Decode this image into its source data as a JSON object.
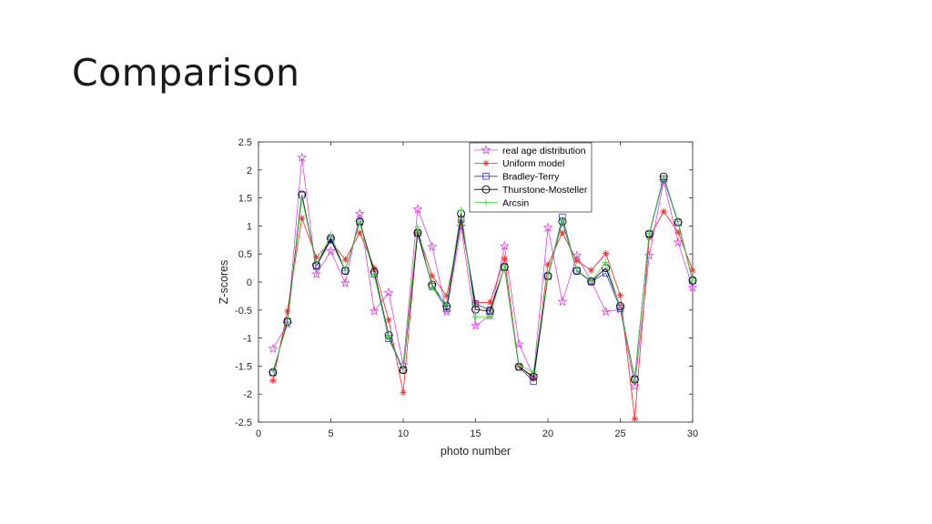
{
  "slide": {
    "title": "Comparison"
  },
  "chart_data": {
    "type": "line",
    "title": "",
    "xlabel": "photo number",
    "ylabel": "Z-scores",
    "xlim": [
      0,
      30
    ],
    "ylim": [
      -2.5,
      2.5
    ],
    "xticks": [
      0,
      5,
      10,
      15,
      20,
      25,
      30
    ],
    "yticks": [
      2.5,
      2,
      1.5,
      1,
      0.5,
      0,
      -0.5,
      -1,
      -1.5,
      -2,
      -2.5
    ],
    "xtick_labels": [
      "0",
      "5",
      "10",
      "15",
      "20",
      "25",
      "30"
    ],
    "ytick_labels": [
      "2.5",
      "2",
      "1.5",
      "1",
      "0.5",
      "0",
      "-0.5",
      "-1",
      "-1.5",
      "-2",
      "-2.5"
    ],
    "grid": false,
    "legend_position": "top-right",
    "x": [
      1,
      2,
      3,
      4,
      5,
      6,
      7,
      8,
      9,
      10,
      11,
      12,
      13,
      14,
      15,
      16,
      17,
      18,
      19,
      20,
      21,
      22,
      23,
      24,
      25,
      26,
      27,
      28,
      29,
      30
    ],
    "series": [
      {
        "name": "real age distribution",
        "color": "#e040e0",
        "marker": "star",
        "values": [
          -1.19,
          -0.75,
          2.22,
          0.14,
          0.55,
          -0.02,
          1.22,
          -0.52,
          -0.19,
          -1.48,
          1.3,
          0.63,
          -0.53,
          0.99,
          -0.78,
          -0.6,
          0.64,
          -1.11,
          -1.67,
          0.97,
          -0.35,
          0.47,
          0.01,
          -0.53,
          -0.49,
          -1.86,
          0.47,
          1.8,
          0.71,
          -0.1
        ]
      },
      {
        "name": "Uniform model",
        "color": "#ff2020",
        "marker": "asterisk",
        "values": [
          -1.76,
          -0.52,
          1.14,
          0.44,
          0.73,
          0.4,
          0.88,
          0.25,
          -0.68,
          -1.97,
          0.89,
          0.11,
          -0.25,
          1.06,
          -0.37,
          -0.36,
          0.42,
          -1.5,
          -1.72,
          0.31,
          0.88,
          0.38,
          0.21,
          0.51,
          -0.24,
          -2.44,
          0.79,
          1.26,
          0.89,
          0.21
        ]
      },
      {
        "name": "Bradley-Terry",
        "color": "#2f2fd0",
        "marker": "square",
        "values": [
          -1.62,
          -0.7,
          1.55,
          0.28,
          0.75,
          0.2,
          1.07,
          0.14,
          -1.01,
          -1.57,
          0.87,
          -0.08,
          -0.48,
          1.12,
          -0.39,
          -0.5,
          0.26,
          -1.52,
          -1.77,
          0.1,
          1.16,
          0.2,
          0.01,
          0.16,
          -0.47,
          -1.73,
          0.85,
          1.84,
          1.06,
          0.02
        ]
      },
      {
        "name": "Thurstone-Mosteller",
        "color": "#000000",
        "marker": "circle",
        "values": [
          -1.61,
          -0.71,
          1.56,
          0.3,
          0.78,
          0.2,
          1.08,
          0.18,
          -0.95,
          -1.57,
          0.88,
          -0.05,
          -0.43,
          1.22,
          -0.49,
          -0.52,
          0.27,
          -1.51,
          -1.69,
          0.11,
          1.08,
          0.2,
          0.01,
          0.25,
          -0.43,
          -1.74,
          0.86,
          1.88,
          1.07,
          0.03
        ]
      },
      {
        "name": "Arcsin",
        "color": "#40e040",
        "marker": "plus",
        "values": [
          -1.58,
          -0.75,
          1.5,
          0.3,
          0.85,
          0.2,
          1.06,
          0.12,
          -0.98,
          -1.55,
          0.98,
          -0.1,
          -0.4,
          1.28,
          -0.62,
          -0.62,
          0.28,
          -1.49,
          -1.6,
          0.13,
          1.1,
          0.21,
          0.02,
          0.35,
          -0.45,
          -1.76,
          0.87,
          1.86,
          1.08,
          0.03
        ]
      }
    ]
  }
}
